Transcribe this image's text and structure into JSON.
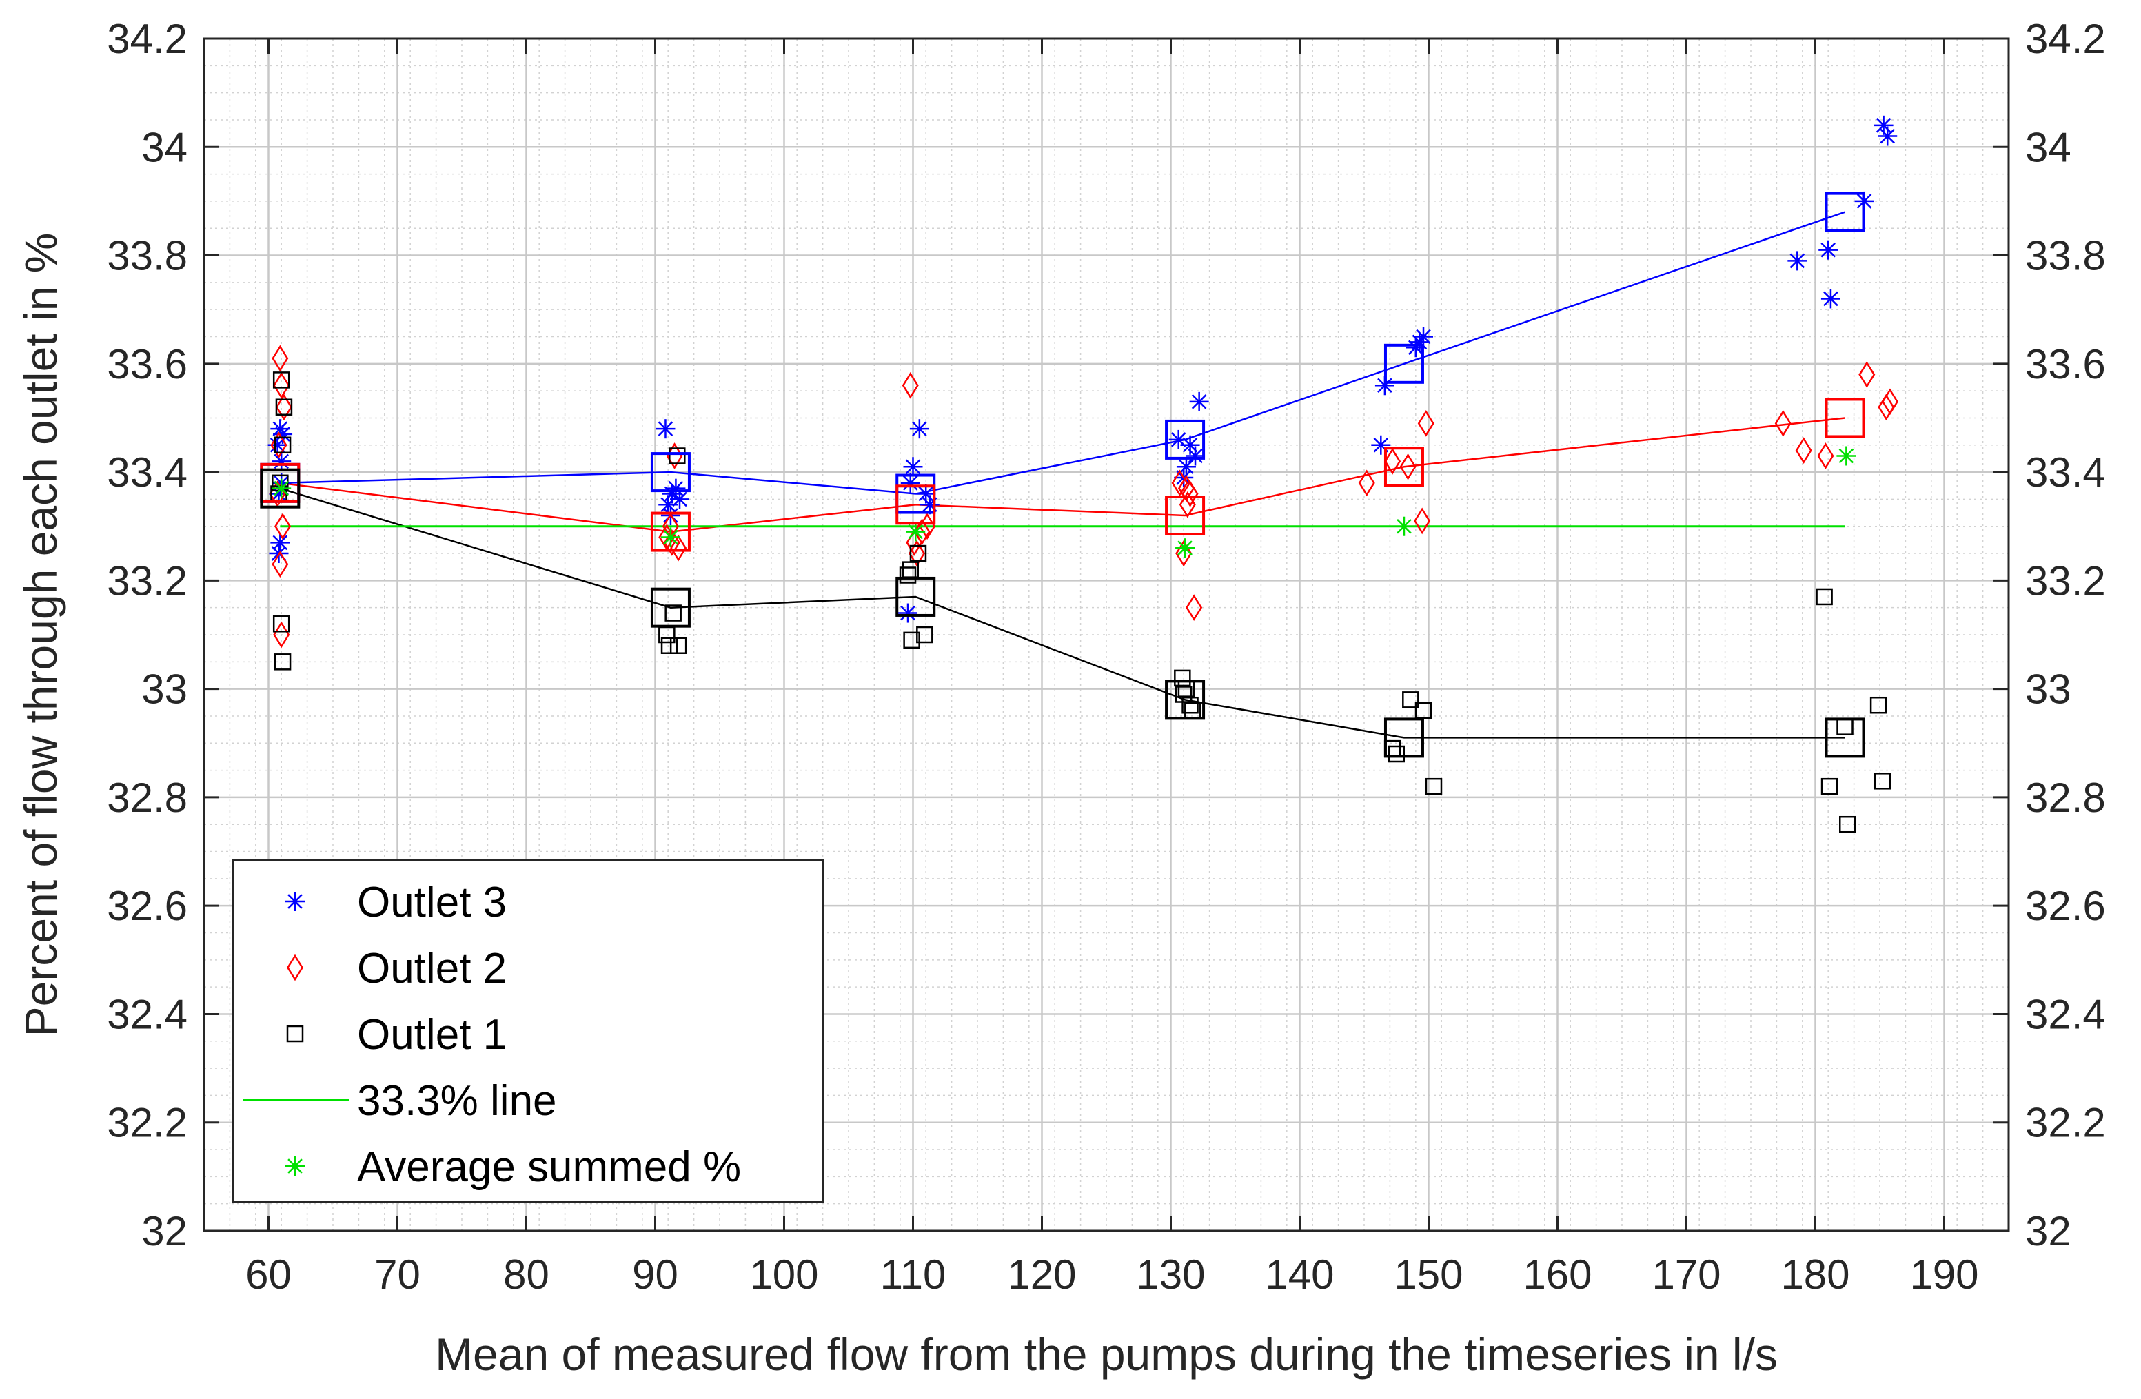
{
  "chart_data": {
    "type": "scatter",
    "title": "",
    "xlabel": "Mean of measured flow from the pumps during the timeseries in l/s",
    "ylabel": "Percent of flow through each outlet in %",
    "xlim": [
      55,
      195
    ],
    "ylim": [
      32,
      34.2
    ],
    "xticks": [
      60,
      70,
      80,
      90,
      100,
      110,
      120,
      130,
      140,
      150,
      160,
      170,
      180,
      190
    ],
    "yticks": [
      32,
      32.2,
      32.4,
      32.6,
      32.8,
      33,
      33.2,
      33.4,
      33.6,
      33.8,
      34,
      34.2
    ],
    "ytick_labels": [
      "32",
      "32.2",
      "32.4",
      "32.6",
      "32.8",
      "33",
      "33.2",
      "33.4",
      "33.6",
      "33.8",
      "34",
      "34.2"
    ],
    "right_axis": true,
    "grid": true,
    "minor_grid": true,
    "legend_position": "bottom-left",
    "series": [
      {
        "name": "Outlet 3",
        "marker": "asterisk",
        "color": "#0000FF",
        "x": [
          60.8,
          60.9,
          61.0,
          60.7,
          61.1,
          60.9,
          61.0,
          60.8,
          90.8,
          91.0,
          91.3,
          91.6,
          91.9,
          91.2,
          109.6,
          110.0,
          110.5,
          111.0,
          111.3,
          109.8,
          130.6,
          131.0,
          131.5,
          131.9,
          132.2,
          131.2,
          146.3,
          146.6,
          149.3,
          149.6,
          149.0,
          178.6,
          181.2,
          181.0,
          183.8,
          185.3,
          185.6
        ],
        "y": [
          33.25,
          33.27,
          33.38,
          33.45,
          33.47,
          33.48,
          33.42,
          33.36,
          33.48,
          33.34,
          33.36,
          33.37,
          33.35,
          33.32,
          33.14,
          33.41,
          33.48,
          33.36,
          33.34,
          33.38,
          33.46,
          33.39,
          33.45,
          33.43,
          33.53,
          33.41,
          33.45,
          33.56,
          33.64,
          33.65,
          33.63,
          33.79,
          33.72,
          33.81,
          33.9,
          34.04,
          34.02
        ]
      },
      {
        "name": "Outlet 2",
        "marker": "diamond",
        "color": "#FF0000",
        "x": [
          60.9,
          61.0,
          61.2,
          60.8,
          61.1,
          60.9,
          61.0,
          60.7,
          91.5,
          91.2,
          90.9,
          91.8,
          91.3,
          109.8,
          110.3,
          110.7,
          111.1,
          110.1,
          130.7,
          131.2,
          131.5,
          131.0,
          131.8,
          131.3,
          145.2,
          147.2,
          148.4,
          149.8,
          149.5,
          177.5,
          179.1,
          180.8,
          184.0,
          185.5,
          185.8
        ],
        "y": [
          33.61,
          33.56,
          33.52,
          33.45,
          33.3,
          33.23,
          33.1,
          33.36,
          33.43,
          33.3,
          33.28,
          33.26,
          33.27,
          33.56,
          33.25,
          33.29,
          33.3,
          33.27,
          33.38,
          33.37,
          33.36,
          33.25,
          33.15,
          33.34,
          33.38,
          33.42,
          33.41,
          33.49,
          33.31,
          33.49,
          33.44,
          33.43,
          33.58,
          33.52,
          33.53
        ],
        "ytick_labels": []
      },
      {
        "name": "Outlet 1",
        "marker": "square",
        "color": "#000000",
        "x": [
          61.0,
          61.2,
          61.1,
          60.9,
          61.0,
          61.1,
          60.8,
          91.7,
          91.4,
          91.1,
          91.8,
          90.9,
          109.6,
          109.8,
          110.4,
          110.9,
          109.9,
          130.9,
          131.2,
          131.5,
          131.0,
          131.7,
          147.2,
          148.6,
          149.6,
          150.4,
          147.5,
          180.7,
          181.1,
          182.3,
          182.5,
          184.9,
          185.2
        ],
        "y": [
          33.57,
          33.52,
          33.45,
          33.38,
          33.12,
          33.05,
          33.36,
          33.43,
          33.14,
          33.08,
          33.08,
          33.1,
          33.21,
          33.22,
          33.25,
          33.1,
          33.09,
          33.02,
          33.0,
          32.97,
          32.99,
          32.96,
          32.89,
          32.98,
          32.96,
          32.82,
          32.88,
          33.17,
          32.82,
          32.93,
          32.75,
          32.97,
          32.83
        ]
      },
      {
        "name": "33.3% line",
        "marker": "line",
        "color": "#00E000",
        "x": [
          60.9,
          182.3
        ],
        "y": [
          33.3,
          33.3
        ]
      },
      {
        "name": "Average summed %",
        "marker": "asterisk",
        "color": "#00E000",
        "x": [
          61.0,
          91.2,
          110.2,
          131.1,
          148.1,
          182.4
        ],
        "y": [
          33.37,
          33.28,
          33.29,
          33.26,
          33.3,
          33.43
        ]
      }
    ],
    "mean_lines": [
      {
        "color": "#0000FF",
        "x": [
          60.9,
          91.2,
          110.2,
          131.1,
          148.1,
          182.3
        ],
        "y": [
          33.38,
          33.4,
          33.36,
          33.46,
          33.6,
          33.88
        ]
      },
      {
        "color": "#FF0000",
        "x": [
          60.9,
          91.2,
          110.2,
          131.1,
          148.1,
          182.3
        ],
        "y": [
          33.38,
          33.29,
          33.34,
          33.32,
          33.41,
          33.5
        ]
      },
      {
        "color": "#000000",
        "x": [
          60.9,
          91.2,
          110.2,
          131.1,
          148.1,
          182.3
        ],
        "y": [
          33.37,
          33.15,
          33.17,
          32.98,
          32.91,
          32.91
        ]
      }
    ]
  }
}
